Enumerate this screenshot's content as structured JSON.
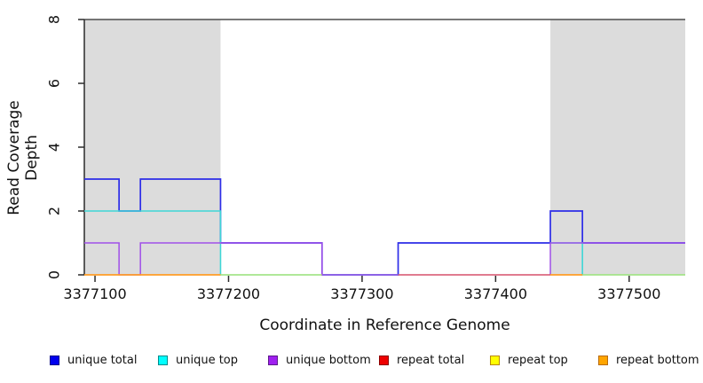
{
  "figure": {
    "xlabel": "Coordinate in Reference Genome",
    "ylabel": "Read Coverage Depth"
  },
  "chart_data": {
    "type": "line",
    "subtype": "step-coverage",
    "title": "",
    "xlabel": "Coordinate in Reference Genome",
    "ylabel": "Read Coverage Depth",
    "xlim": [
      3377092,
      3377542
    ],
    "ylim": [
      0,
      8
    ],
    "xticks": [
      3377100,
      3377200,
      3377300,
      3377400,
      3377500
    ],
    "yticks": [
      0,
      2,
      4,
      6,
      8
    ],
    "grid": false,
    "legend_position": "bottom",
    "shaded_regions": [
      {
        "x0": 3377092,
        "x1": 3377194,
        "color": "#dcdcdc"
      },
      {
        "x0": 3377441,
        "x1": 3377542,
        "color": "#dcdcdc"
      }
    ],
    "cap_line": {
      "y": 8,
      "color": "#4d4d4d"
    },
    "axis_color": "#2b2b2b",
    "series": [
      {
        "label": "unique total",
        "legend_color": "#0000EE",
        "legend_border": "#00008B",
        "line_color": "#2d2de8",
        "line_width": 1.7,
        "opacity": 1,
        "runs": [
          [
            [
              3377092,
              3377118,
              3
            ],
            [
              3377118,
              3377134,
              2
            ],
            [
              3377134,
              3377194,
              3
            ],
            [
              3377194,
              3377270,
              1
            ],
            [
              3377270,
              3377327,
              0
            ],
            [
              3377327,
              3377441,
              1
            ],
            [
              3377441,
              3377465,
              2
            ],
            [
              3377465,
              3377542,
              1
            ]
          ]
        ]
      },
      {
        "label": "unique top",
        "legend_color": "#00FFFF",
        "legend_border": "#008B8B",
        "line_color": "#3fd6d6",
        "line_width": 1.6,
        "opacity": 1,
        "runs": [
          [
            [
              3377092,
              3377194,
              2
            ],
            [
              3377194,
              3377327,
              0
            ]
          ],
          [
            [
              3377441,
              3377465,
              1
            ],
            [
              3377465,
              3377542,
              0
            ]
          ]
        ]
      },
      {
        "label": "unique bottom",
        "legend_color": "#A020F0",
        "legend_border": "#5D1A8B",
        "line_color": "#a050e8",
        "line_width": 1.5,
        "opacity": 1,
        "runs": [
          [
            [
              3377092,
              3377118,
              1
            ],
            [
              3377118,
              3377134,
              0
            ],
            [
              3377134,
              3377270,
              1
            ],
            [
              3377270,
              3377327,
              0
            ]
          ],
          [
            [
              3377441,
              3377441,
              0
            ],
            [
              3377441,
              3377542,
              1
            ]
          ]
        ]
      },
      {
        "label": "repeat total",
        "legend_color": "#EE0000",
        "legend_border": "#8B0000",
        "line_color": "#d6506b",
        "line_width": 1.4,
        "opacity": 1,
        "runs": [
          [
            [
              3377327,
              3377441,
              0
            ]
          ]
        ]
      },
      {
        "label": "repeat top",
        "legend_color": "#FFFF00",
        "legend_border": "#B8860B",
        "line_color": "#f0f040",
        "line_width": 1.6,
        "opacity": 0.6,
        "runs": [
          [
            [
              3377194,
              3377270,
              0
            ]
          ],
          [
            [
              3377465,
              3377542,
              0
            ]
          ]
        ]
      },
      {
        "label": "repeat bottom",
        "legend_color": "#FFA500",
        "legend_border": "#B86B0B",
        "line_color": "#ff9d26",
        "line_width": 1.7,
        "opacity": 1,
        "runs": [
          [
            [
              3377092,
              3377194,
              0
            ]
          ],
          [
            [
              3377441,
              3377465,
              0
            ]
          ]
        ]
      }
    ]
  }
}
